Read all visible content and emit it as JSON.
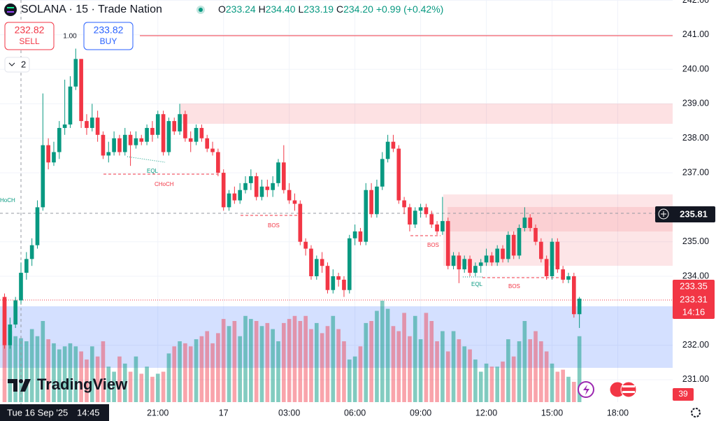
{
  "chart_data": {
    "type": "candlestick",
    "ylim": [
      230.35,
      242.01
    ],
    "yticks": [
      {
        "value": 242,
        "label": "242.00"
      },
      {
        "value": 241,
        "label": "241.00"
      },
      {
        "value": 240,
        "label": "240.00"
      },
      {
        "value": 239,
        "label": "239.00"
      },
      {
        "value": 238,
        "label": "238.00"
      },
      {
        "value": 237,
        "label": "237.00"
      },
      {
        "value": 235,
        "label": "235.00"
      },
      {
        "value": 234,
        "label": "234.00"
      },
      {
        "value": 232,
        "label": "232.00"
      },
      {
        "value": 231,
        "label": "231.00"
      }
    ],
    "xlim": [
      -0.83,
      122.03
    ],
    "xticks": [
      {
        "value": 28,
        "label": "21:00"
      },
      {
        "value": 40,
        "label": "17"
      },
      {
        "value": 52,
        "label": "03:00"
      },
      {
        "value": 64,
        "label": "06:00"
      },
      {
        "value": 76,
        "label": "09:00"
      },
      {
        "value": 88,
        "label": "12:00"
      },
      {
        "value": 100,
        "label": "15:00"
      },
      {
        "value": 112,
        "label": "18:00"
      }
    ],
    "up_color": "#089981",
    "down_color": "#f23645",
    "volume_up_color": "rgba(8,153,129,0.5)",
    "volume_down_color": "rgba(242,54,69,0.45)",
    "vlim": [
      0,
      100
    ],
    "ohlc": [
      [
        233.4,
        233.5,
        231.9,
        232.0
      ],
      [
        232.0,
        232.8,
        231.9,
        232.6
      ],
      [
        232.6,
        233.4,
        232.5,
        233.3
      ],
      [
        233.3,
        234.4,
        233.2,
        234.1
      ],
      [
        234.1,
        234.7,
        233.9,
        234.5
      ],
      [
        234.5,
        235.1,
        234.3,
        234.9
      ],
      [
        234.9,
        236.2,
        234.8,
        236.0
      ],
      [
        236.0,
        239.3,
        235.9,
        237.8
      ],
      [
        237.8,
        238.0,
        237.1,
        237.3
      ],
      [
        237.3,
        237.9,
        237.2,
        237.6
      ],
      [
        237.6,
        238.5,
        237.4,
        238.3
      ],
      [
        238.3,
        239.7,
        238.1,
        238.4
      ],
      [
        238.4,
        239.8,
        238.3,
        239.5
      ],
      [
        239.5,
        240.6,
        239.4,
        240.3
      ],
      [
        240.3,
        240.3,
        238.3,
        238.5
      ],
      [
        238.5,
        238.7,
        238.1,
        238.3
      ],
      [
        238.3,
        239.0,
        238.2,
        238.6
      ],
      [
        238.6,
        238.8,
        237.9,
        238.1
      ],
      [
        238.1,
        238.2,
        237.4,
        237.5
      ],
      [
        237.5,
        237.9,
        237.3,
        237.6
      ],
      [
        237.6,
        238.2,
        237.5,
        238.0
      ],
      [
        238.0,
        238.1,
        237.5,
        237.6
      ],
      [
        237.6,
        238.3,
        237.5,
        238.1
      ],
      [
        238.1,
        238.2,
        237.2,
        237.8
      ],
      [
        237.8,
        238.2,
        237.7,
        238.0
      ],
      [
        238.0,
        238.1,
        237.8,
        237.9
      ],
      [
        237.9,
        238.4,
        237.8,
        238.3
      ],
      [
        238.3,
        238.5,
        237.9,
        238.1
      ],
      [
        238.1,
        238.8,
        238.0,
        238.7
      ],
      [
        238.7,
        238.8,
        237.5,
        237.6
      ],
      [
        237.6,
        238.6,
        237.5,
        238.5
      ],
      [
        238.5,
        238.6,
        238.1,
        238.2
      ],
      [
        238.2,
        239.0,
        238.1,
        238.7
      ],
      [
        238.7,
        238.8,
        237.9,
        238.0
      ],
      [
        238.0,
        238.2,
        237.6,
        237.9
      ],
      [
        237.9,
        238.4,
        237.8,
        238.3
      ],
      [
        238.3,
        238.4,
        237.9,
        238.0
      ],
      [
        238.0,
        238.1,
        237.6,
        237.7
      ],
      [
        237.7,
        237.9,
        237.5,
        237.6
      ],
      [
        237.6,
        237.7,
        236.9,
        237.0
      ],
      [
        237.0,
        237.1,
        235.9,
        236.0
      ],
      [
        236.0,
        236.5,
        235.9,
        236.4
      ],
      [
        236.4,
        236.6,
        236.1,
        236.2
      ],
      [
        236.2,
        236.7,
        236.1,
        236.5
      ],
      [
        236.5,
        236.9,
        236.4,
        236.7
      ],
      [
        236.7,
        237.1,
        236.5,
        236.9
      ],
      [
        236.9,
        237.0,
        236.2,
        236.3
      ],
      [
        236.3,
        236.8,
        236.2,
        236.6
      ],
      [
        236.6,
        236.8,
        236.3,
        236.5
      ],
      [
        236.5,
        236.9,
        236.3,
        236.7
      ],
      [
        236.7,
        237.4,
        236.6,
        237.3
      ],
      [
        237.3,
        237.8,
        236.4,
        236.5
      ],
      [
        236.5,
        236.7,
        236.1,
        236.2
      ],
      [
        236.2,
        236.4,
        235.9,
        236.1
      ],
      [
        236.1,
        236.2,
        234.9,
        235.0
      ],
      [
        235.0,
        235.1,
        234.6,
        234.8
      ],
      [
        234.8,
        234.9,
        233.9,
        234.0
      ],
      [
        234.0,
        234.6,
        233.9,
        234.5
      ],
      [
        234.5,
        234.7,
        234.1,
        234.3
      ],
      [
        234.3,
        234.4,
        233.5,
        233.6
      ],
      [
        233.6,
        234.2,
        233.5,
        234.0
      ],
      [
        234.0,
        234.1,
        233.7,
        233.9
      ],
      [
        233.9,
        234.0,
        233.4,
        233.6
      ],
      [
        233.6,
        235.2,
        233.5,
        235.1
      ],
      [
        235.1,
        235.5,
        234.9,
        235.3
      ],
      [
        235.3,
        235.4,
        234.9,
        235.0
      ],
      [
        235.0,
        236.7,
        234.9,
        236.5
      ],
      [
        236.5,
        236.7,
        235.7,
        235.8
      ],
      [
        235.8,
        236.8,
        235.7,
        236.6
      ],
      [
        236.6,
        237.6,
        236.5,
        237.4
      ],
      [
        237.4,
        238.1,
        237.3,
        237.9
      ],
      [
        237.9,
        238.1,
        237.6,
        237.7
      ],
      [
        237.7,
        237.8,
        236.1,
        236.2
      ],
      [
        236.2,
        236.3,
        235.8,
        236.0
      ],
      [
        236.0,
        236.1,
        235.3,
        235.5
      ],
      [
        235.5,
        236.0,
        235.4,
        235.9
      ],
      [
        235.9,
        236.1,
        235.7,
        236.0
      ],
      [
        236.0,
        236.1,
        235.7,
        235.8
      ],
      [
        235.8,
        235.9,
        235.4,
        235.5
      ],
      [
        235.5,
        235.6,
        235.2,
        235.3
      ],
      [
        235.3,
        236.3,
        235.2,
        235.6
      ],
      [
        235.6,
        235.7,
        234.2,
        234.3
      ],
      [
        234.3,
        234.7,
        234.2,
        234.6
      ],
      [
        234.6,
        234.7,
        233.8,
        234.2
      ],
      [
        234.2,
        234.6,
        234.1,
        234.5
      ],
      [
        234.5,
        234.6,
        234.0,
        234.1
      ],
      [
        234.1,
        234.4,
        234.0,
        234.3
      ],
      [
        234.3,
        234.5,
        234.1,
        234.4
      ],
      [
        234.4,
        234.8,
        234.3,
        234.6
      ],
      [
        234.6,
        234.7,
        234.3,
        234.4
      ],
      [
        234.4,
        234.9,
        234.3,
        234.8
      ],
      [
        234.8,
        234.9,
        234.4,
        234.5
      ],
      [
        234.5,
        235.3,
        234.4,
        235.2
      ],
      [
        235.2,
        235.3,
        234.5,
        234.6
      ],
      [
        234.6,
        235.5,
        234.5,
        235.4
      ],
      [
        235.4,
        236.0,
        235.3,
        235.7
      ],
      [
        235.7,
        235.8,
        235.3,
        235.4
      ],
      [
        235.4,
        235.5,
        234.9,
        235.0
      ],
      [
        235.0,
        235.1,
        234.4,
        234.5
      ],
      [
        234.5,
        234.6,
        233.9,
        234.0
      ],
      [
        234.0,
        235.1,
        233.9,
        235.0
      ],
      [
        235.0,
        235.1,
        234.1,
        234.2
      ],
      [
        234.2,
        234.3,
        233.8,
        233.9
      ],
      [
        233.9,
        234.1,
        233.8,
        234.0
      ],
      [
        234.0,
        234.1,
        232.8,
        232.9
      ],
      [
        232.9,
        233.4,
        232.5,
        233.35
      ]
    ],
    "volume": [
      100,
      70,
      65,
      63,
      60,
      72,
      65,
      80,
      62,
      58,
      52,
      55,
      58,
      55,
      50,
      42,
      55,
      45,
      60,
      35,
      30,
      45,
      38,
      30,
      45,
      28,
      35,
      25,
      28,
      30,
      48,
      55,
      60,
      58,
      55,
      62,
      65,
      70,
      58,
      68,
      82,
      75,
      80,
      65,
      85,
      82,
      80,
      75,
      78,
      72,
      60,
      78,
      82,
      85,
      80,
      85,
      72,
      78,
      68,
      75,
      85,
      72,
      60,
      42,
      45,
      55,
      78,
      80,
      90,
      100,
      92,
      75,
      70,
      88,
      65,
      85,
      62,
      88,
      80,
      60,
      70,
      50,
      70,
      62,
      55,
      52,
      42,
      30,
      38,
      35,
      35,
      40,
      62,
      45,
      60,
      80,
      62,
      70,
      60,
      50,
      38,
      30,
      32,
      25,
      20,
      65
    ]
  },
  "header": {
    "symbol": "SOLANA · 15 · Trade Nation",
    "ohlc": [
      [
        "O",
        "233.24"
      ],
      [
        "H",
        "234.40"
      ],
      [
        "L",
        "233.19"
      ],
      [
        "C",
        "234.20"
      ]
    ],
    "change": "+0.99 (+0.42%)"
  },
  "trade": {
    "sell_price": "232.82",
    "sell": "SELL",
    "buy_price": "233.82",
    "buy": "BUY",
    "spread": "1.00",
    "count": "2"
  },
  "annotations": [
    "HoCH",
    "EQL",
    "CHoCH",
    "BOS",
    "BOS",
    "EQL",
    "BOS"
  ],
  "axis_labels": {
    "crosshair_price": "235.81",
    "last_price": "233.35",
    "bid": "233.31",
    "countdown": "14:16",
    "volume": "39",
    "crosshair_time": "Tue 16 Sep '25",
    "crosshair_clock": "14:45"
  },
  "brand": "TradingView"
}
